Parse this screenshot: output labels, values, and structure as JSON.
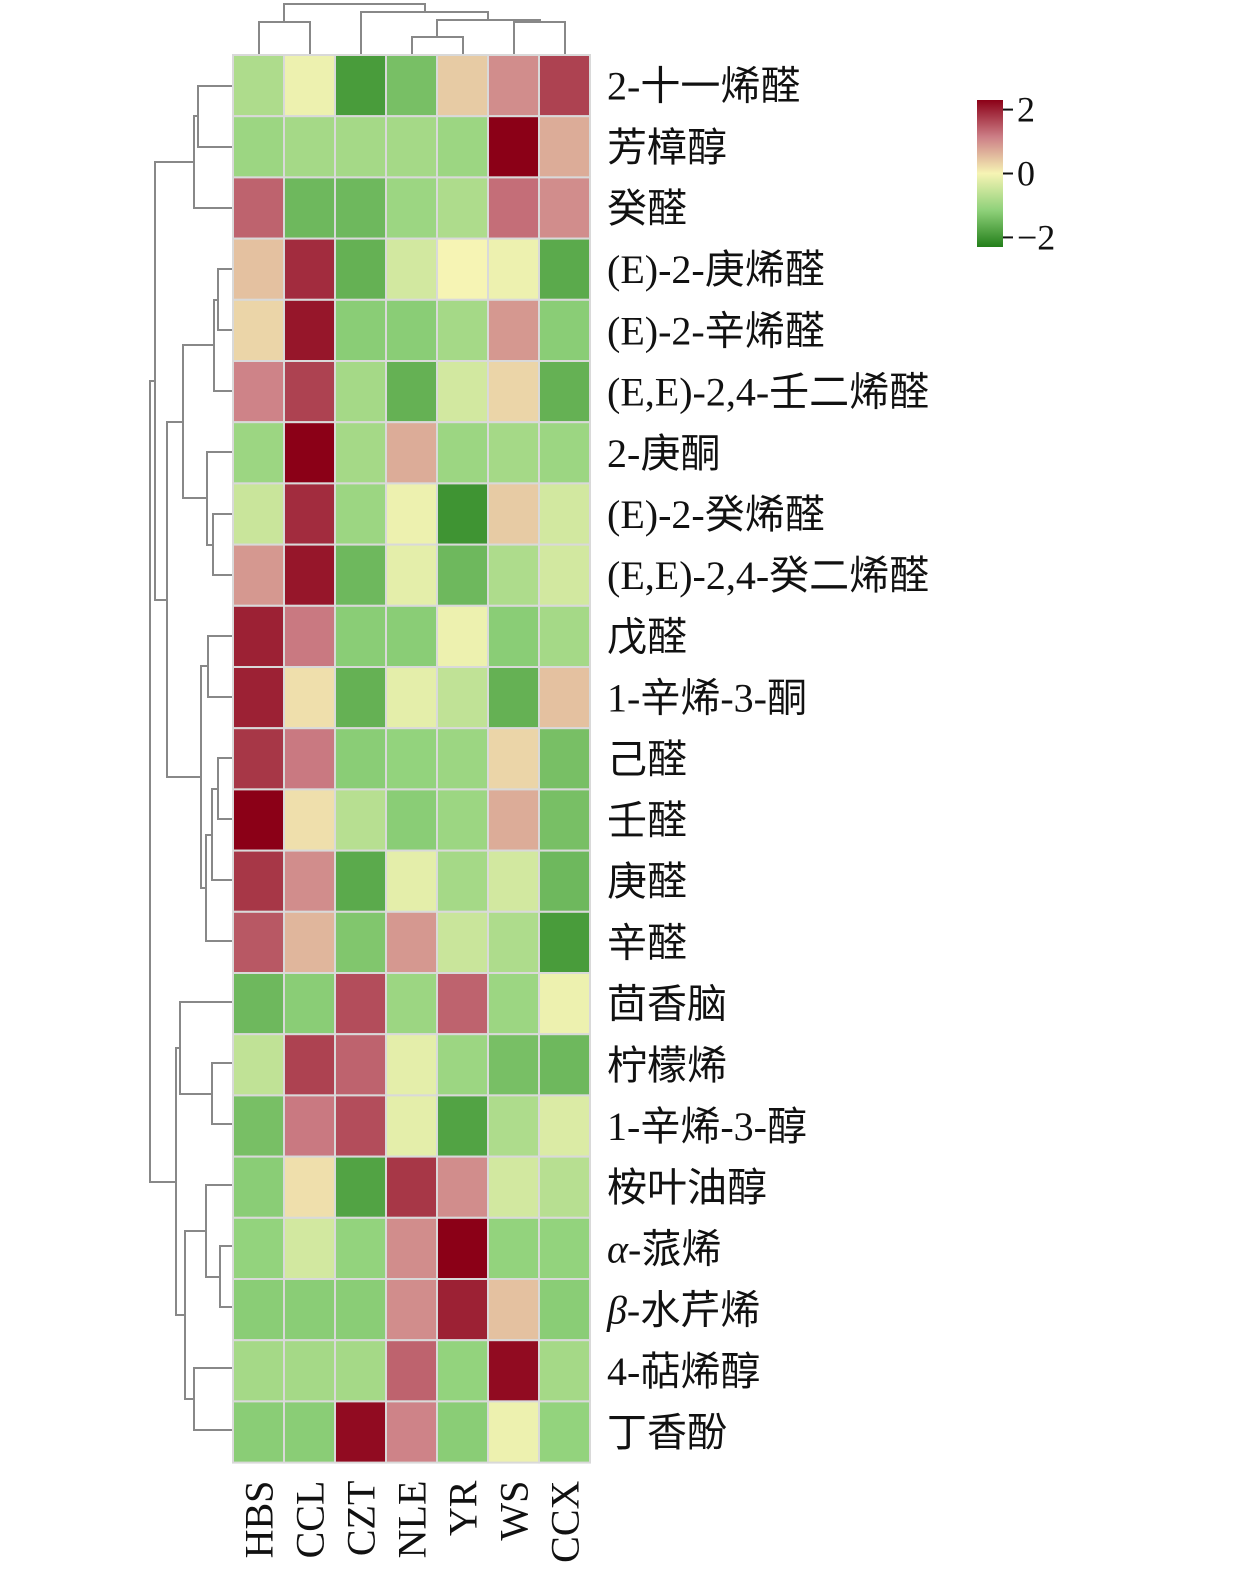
{
  "chart_data": {
    "type": "heatmap",
    "title": "",
    "xlabel": "",
    "ylabel": "",
    "columns": [
      "HBS",
      "CCL",
      "CZT",
      "NLE",
      "YR",
      "WS",
      "CCX"
    ],
    "rows": [
      "2-十一烯醛",
      "芳樟醇",
      "癸醛",
      "(E)-2-庚烯醛",
      "(E)-2-辛烯醛",
      "(E,E)-2,4-壬二烯醛",
      "2-庚酮",
      "(E)-2-癸烯醛",
      "(E,E)-2,4-癸二烯醛",
      "戊醛",
      "1-辛烯-3-酮",
      "己醛",
      "壬醛",
      "庚醛",
      "辛醛",
      "茴香脑",
      "柠檬烯",
      "1-辛烯-3-醇",
      "桉叶油醇",
      "α-蒎烯",
      "β-水芹烯",
      "4-萜烯醇",
      "丁香酚"
    ],
    "values": [
      [
        -0.8,
        -0.1,
        -1.9,
        -1.4,
        0.4,
        1.0,
        1.7
      ],
      [
        -1.0,
        -0.9,
        -0.9,
        -0.9,
        -1.0,
        2.3,
        0.7
      ],
      [
        1.4,
        -1.5,
        -1.5,
        -1.0,
        -0.8,
        1.3,
        1.0
      ],
      [
        0.5,
        1.9,
        -1.6,
        -0.4,
        0.0,
        -0.1,
        -1.7
      ],
      [
        0.3,
        2.1,
        -1.2,
        -1.2,
        -0.9,
        0.9,
        -1.2
      ],
      [
        1.1,
        1.7,
        -0.9,
        -1.6,
        -0.4,
        0.3,
        -1.6
      ],
      [
        -1.0,
        2.5,
        -0.9,
        0.7,
        -1.0,
        -0.9,
        -1.0
      ],
      [
        -0.5,
        1.9,
        -1.0,
        -0.1,
        -2.0,
        0.4,
        -0.4
      ],
      [
        0.9,
        2.1,
        -1.5,
        -0.2,
        -1.5,
        -0.8,
        -0.4
      ],
      [
        2.0,
        1.2,
        -1.2,
        -1.2,
        -0.1,
        -1.2,
        -0.9
      ],
      [
        2.0,
        0.2,
        -1.6,
        -0.2,
        -0.6,
        -1.6,
        0.5
      ],
      [
        1.8,
        1.2,
        -1.2,
        -1.1,
        -1.0,
        0.3,
        -1.4
      ],
      [
        2.3,
        0.2,
        -0.7,
        -1.2,
        -1.0,
        0.7,
        -1.4
      ],
      [
        1.8,
        1.0,
        -1.7,
        -0.2,
        -0.9,
        -0.4,
        -1.5
      ],
      [
        1.5,
        0.6,
        -1.3,
        0.9,
        -0.5,
        -0.8,
        -1.9
      ],
      [
        -1.5,
        -1.2,
        1.6,
        -1.0,
        1.4,
        -1.0,
        -0.1
      ],
      [
        -0.6,
        1.7,
        1.4,
        -0.2,
        -1.0,
        -1.4,
        -1.5
      ],
      [
        -1.4,
        1.2,
        1.6,
        -0.2,
        -1.8,
        -0.8,
        -0.3
      ],
      [
        -1.2,
        0.2,
        -1.8,
        1.8,
        1.0,
        -0.4,
        -0.7
      ],
      [
        -1.1,
        -0.4,
        -1.1,
        1.0,
        2.4,
        -1.1,
        -1.1
      ],
      [
        -1.2,
        -1.2,
        -1.2,
        1.0,
        2.0,
        0.5,
        -1.2
      ],
      [
        -0.9,
        -0.9,
        -0.9,
        1.4,
        -1.1,
        2.2,
        -0.9
      ],
      [
        -1.2,
        -1.2,
        2.2,
        1.1,
        -1.2,
        -0.1,
        -1.1
      ]
    ],
    "colorbar": {
      "range": [
        -2.3,
        2.3
      ],
      "ticks": [
        2,
        0,
        -2
      ],
      "tick_labels": [
        "2",
        "0",
        "−2"
      ],
      "colors": {
        "low": "#237f1a",
        "mid": "#f6f4b4",
        "high": "#8b0017"
      },
      "placement": "top-right"
    },
    "row_dendrogram": true,
    "column_dendrogram": true
  }
}
